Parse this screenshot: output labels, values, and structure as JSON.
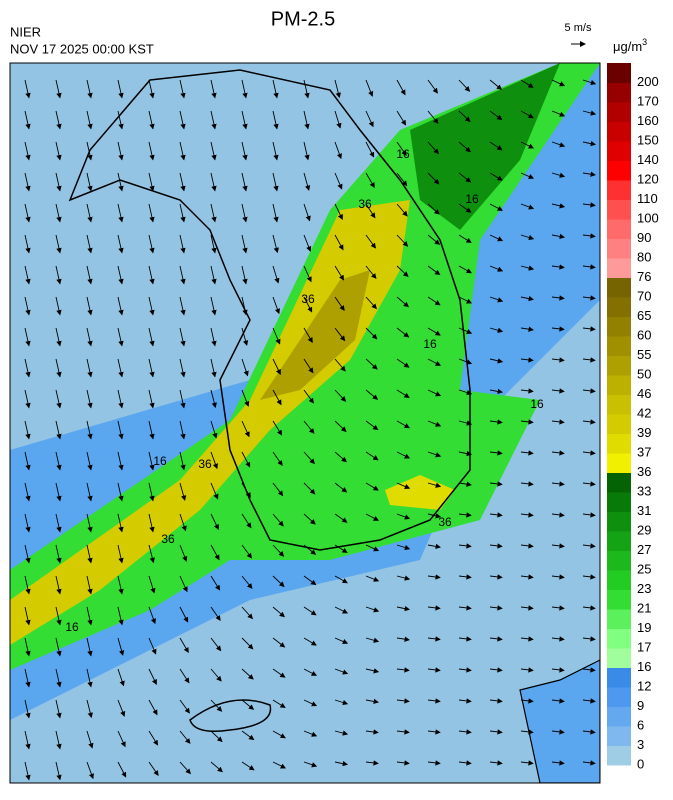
{
  "header": {
    "title": "PM-2.5",
    "agency": "NIER",
    "datetime": "NOV 17 2025 00:00 KST",
    "wind_scale": "5 m/s",
    "unit": "μg/m",
    "unit_power": "3"
  },
  "colorbar": {
    "labels": [
      0,
      3,
      6,
      9,
      12,
      16,
      17,
      19,
      21,
      23,
      25,
      27,
      29,
      31,
      33,
      36,
      37,
      39,
      42,
      46,
      50,
      55,
      60,
      65,
      70,
      76,
      80,
      90,
      100,
      110,
      120,
      140,
      150,
      160,
      170,
      200
    ],
    "colors": [
      "#a0cde6",
      "#7fb8ee",
      "#64a8ef",
      "#4e98f0",
      "#3a8ae8",
      "#a0ff9c",
      "#80ff80",
      "#5cf05c",
      "#33dd33",
      "#22cc22",
      "#1cb81c",
      "#14a314",
      "#0e900e",
      "#087a08",
      "#046404",
      "#f0f000",
      "#e0dc00",
      "#d4cc00",
      "#c8c000",
      "#bcb000",
      "#aea000",
      "#a09000",
      "#928000",
      "#847000",
      "#766400",
      "#ff9a9a",
      "#ff8080",
      "#ff6a6a",
      "#ff5050",
      "#ff3030",
      "#ff0000",
      "#e00000",
      "#c80000",
      "#b00000",
      "#960000",
      "#6a0000"
    ]
  },
  "contour_labels": [
    "16",
    "16",
    "16",
    "16",
    "16",
    "16",
    "36",
    "36",
    "36",
    "36",
    "36"
  ]
}
